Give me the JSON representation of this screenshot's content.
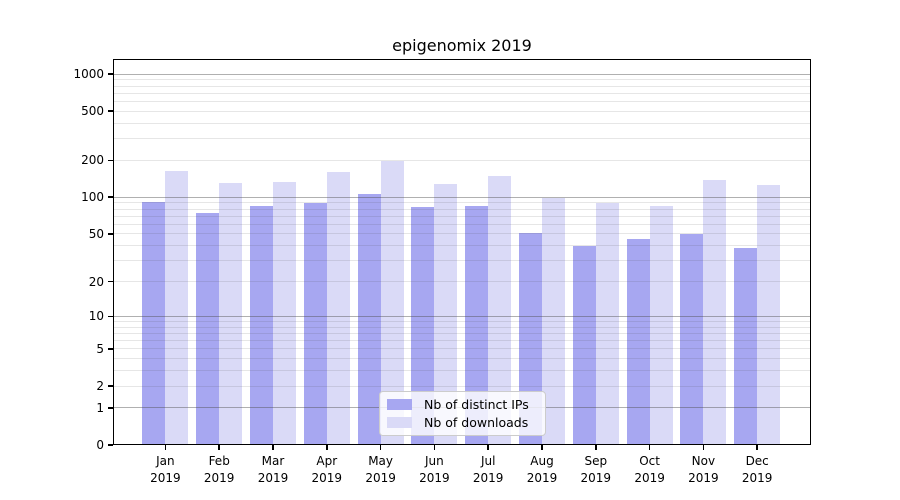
{
  "figure": {
    "background": "#ffffff"
  },
  "chart_data": {
    "type": "bar",
    "title": "epigenomix 2019",
    "categories": [
      "Jan",
      "Feb",
      "Mar",
      "Apr",
      "May",
      "Jun",
      "Jul",
      "Aug",
      "Sep",
      "Oct",
      "Nov",
      "Dec"
    ],
    "category_year": "2019",
    "yscale": "log1p",
    "ylim": [
      0,
      1324
    ],
    "yticks": [
      0,
      1,
      2,
      5,
      10,
      20,
      50,
      100,
      200,
      500,
      1000
    ],
    "series": [
      {
        "name": "Nb of distinct IPs",
        "color": "#a7a7f1",
        "values": [
          92,
          74,
          85,
          89,
          107,
          83,
          84,
          51,
          40,
          45,
          50,
          38
        ]
      },
      {
        "name": "Nb of downloads",
        "color": "#dadaf7",
        "values": [
          165,
          131,
          134,
          160,
          196,
          128,
          148,
          98,
          89,
          85,
          139,
          125
        ]
      }
    ],
    "grid": {
      "major_values": [
        1,
        10,
        100,
        1000
      ],
      "minor_values": [
        2,
        3,
        4,
        5,
        6,
        7,
        8,
        9,
        20,
        30,
        40,
        50,
        60,
        70,
        80,
        90,
        200,
        300,
        400,
        500,
        600,
        700,
        800,
        900
      ],
      "major_color": "rgba(80,80,80,0.45)",
      "minor_color": "rgba(80,80,80,0.14)"
    },
    "legend_position": "lower center",
    "axis_color": "#000000"
  }
}
